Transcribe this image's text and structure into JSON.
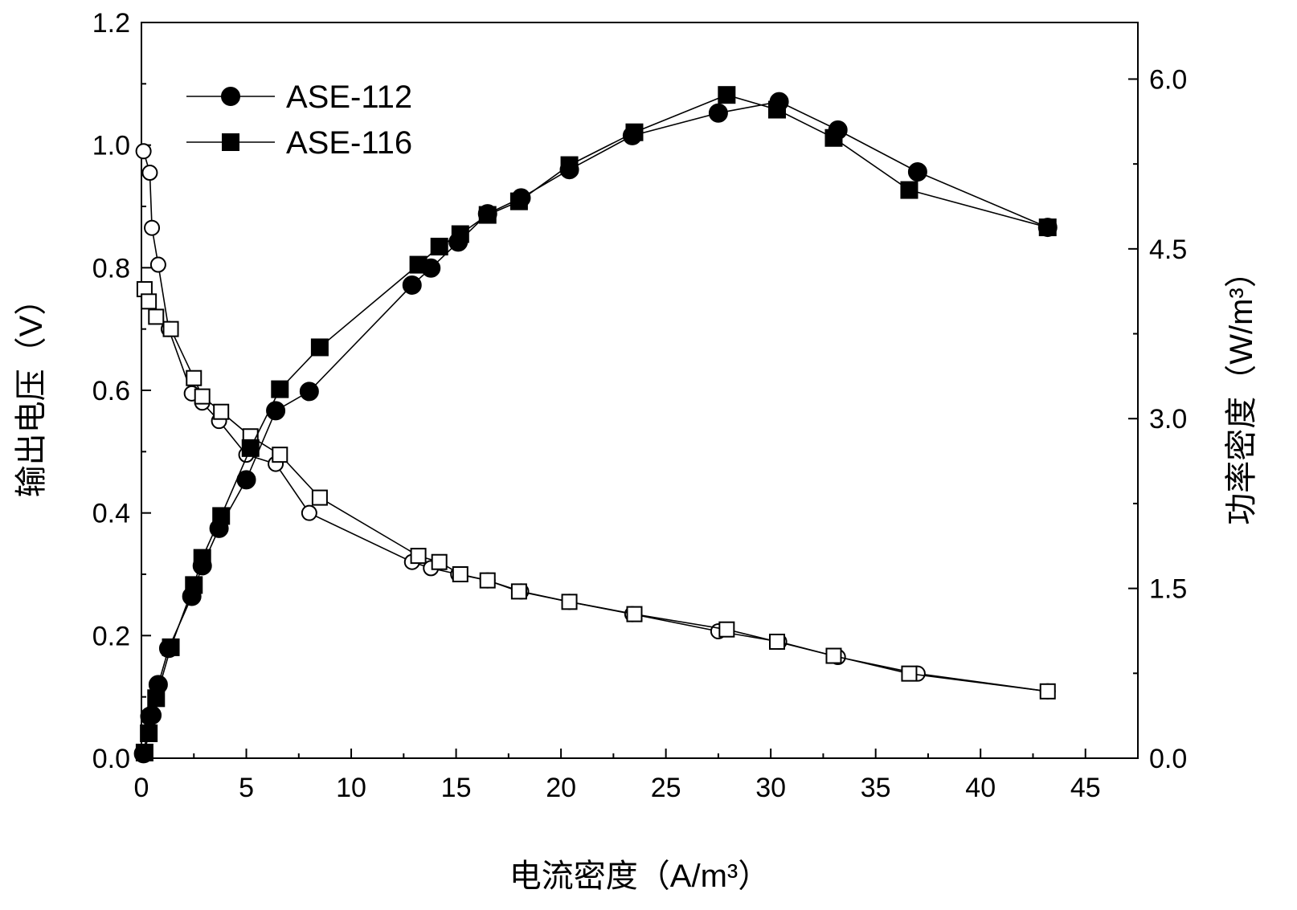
{
  "chart_data": {
    "type": "line",
    "title": "",
    "xlabel": "电流密度（A/m³）",
    "ylabel_left": "输出电压（V）",
    "ylabel_right": "功率密度（W/m³）",
    "xlim": [
      0,
      47.5
    ],
    "ylim_left": [
      0,
      1.2
    ],
    "ylim_right": [
      0,
      6.5
    ],
    "xticks": [
      "0",
      "5",
      "10",
      "15",
      "20",
      "25",
      "30",
      "35",
      "40",
      "45"
    ],
    "xtick_values": [
      0,
      5,
      10,
      15,
      20,
      25,
      30,
      35,
      40,
      45
    ],
    "yticks_left": [
      "0.0",
      "0.2",
      "0.4",
      "0.6",
      "0.8",
      "1.0",
      "1.2"
    ],
    "ytick_left_values": [
      0,
      0.2,
      0.4,
      0.6,
      0.8,
      1.0,
      1.2
    ],
    "yticks_right": [
      "0.0",
      "1.5",
      "3.0",
      "4.5",
      "6.0"
    ],
    "ytick_right_values": [
      0,
      1.5,
      3.0,
      4.5,
      6.0
    ],
    "grid": false,
    "legend": {
      "placement": "top-left",
      "entries": [
        {
          "label": "ASE-112",
          "marker": "circle"
        },
        {
          "label": "ASE-116",
          "marker": "square"
        }
      ]
    },
    "series": [
      {
        "name": "ASE-112",
        "kind": "voltage",
        "axis": "left",
        "marker": "circle",
        "filled": false,
        "x": [
          0.1,
          0.4,
          0.5,
          0.8,
          1.3,
          2.4,
          2.9,
          3.7,
          5.0,
          6.4,
          8.0,
          12.9,
          13.8,
          15.1,
          16.5,
          18.1,
          20.4,
          23.4,
          27.5,
          30.4,
          33.2,
          37.0,
          43.2
        ],
        "y": [
          0.99,
          0.955,
          0.865,
          0.805,
          0.7,
          0.595,
          0.58,
          0.55,
          0.495,
          0.48,
          0.4,
          0.32,
          0.31,
          0.3,
          0.29,
          0.272,
          0.255,
          0.235,
          0.207,
          0.19,
          0.165,
          0.138,
          0.109
        ]
      },
      {
        "name": "ASE-116",
        "kind": "voltage",
        "axis": "left",
        "marker": "square",
        "filled": false,
        "x": [
          0.15,
          0.35,
          0.7,
          1.4,
          2.5,
          2.9,
          3.8,
          5.2,
          6.6,
          8.5,
          13.2,
          14.2,
          15.2,
          16.5,
          18.0,
          20.4,
          23.5,
          27.9,
          30.3,
          33.0,
          36.6,
          43.2
        ],
        "y": [
          0.765,
          0.745,
          0.72,
          0.7,
          0.62,
          0.59,
          0.565,
          0.525,
          0.495,
          0.425,
          0.33,
          0.32,
          0.3,
          0.29,
          0.272,
          0.255,
          0.235,
          0.21,
          0.19,
          0.167,
          0.138,
          0.109
        ]
      },
      {
        "name": "ASE-112",
        "kind": "power",
        "axis": "right",
        "marker": "circle",
        "filled": true,
        "x": [
          0.1,
          0.4,
          0.5,
          0.8,
          1.3,
          2.4,
          2.9,
          3.7,
          5.0,
          6.4,
          8.0,
          12.9,
          13.8,
          15.1,
          16.5,
          18.1,
          20.4,
          23.4,
          27.5,
          30.4,
          33.2,
          37.0,
          43.2
        ],
        "y": [
          0.04,
          0.37,
          0.38,
          0.65,
          0.97,
          1.43,
          1.7,
          2.03,
          2.46,
          3.07,
          3.24,
          4.18,
          4.33,
          4.56,
          4.81,
          4.95,
          5.2,
          5.5,
          5.7,
          5.8,
          5.55,
          5.18,
          4.69
        ]
      },
      {
        "name": "ASE-116",
        "kind": "power",
        "axis": "right",
        "marker": "square",
        "filled": true,
        "x": [
          0.15,
          0.35,
          0.7,
          1.4,
          2.5,
          2.9,
          3.8,
          5.2,
          6.6,
          8.5,
          13.2,
          14.2,
          15.2,
          16.5,
          18.0,
          20.4,
          23.5,
          27.9,
          30.3,
          33.0,
          36.6,
          43.2
        ],
        "y": [
          0.05,
          0.22,
          0.53,
          0.98,
          1.53,
          1.77,
          2.14,
          2.74,
          3.26,
          3.63,
          4.36,
          4.52,
          4.63,
          4.8,
          4.92,
          5.24,
          5.53,
          5.86,
          5.73,
          5.48,
          5.02,
          4.69
        ]
      }
    ]
  }
}
